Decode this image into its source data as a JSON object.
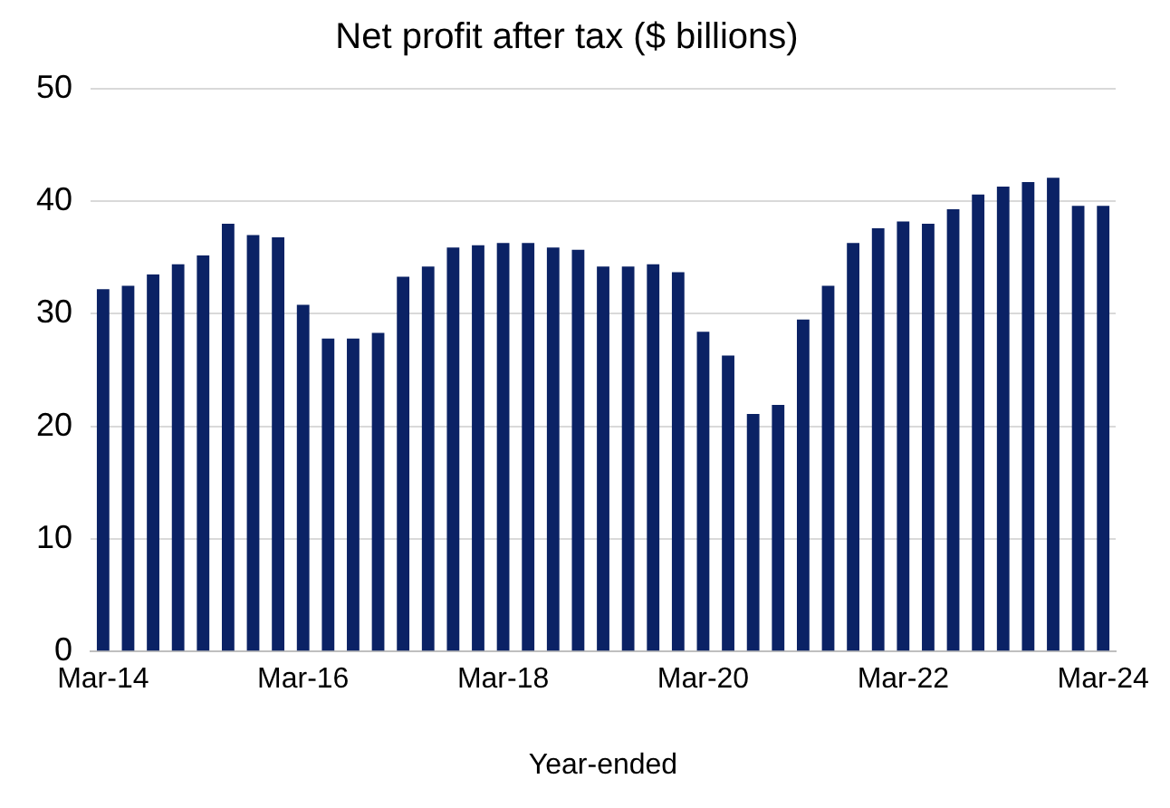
{
  "chart_data": {
    "type": "bar",
    "title": "Net profit after tax ($ billions)",
    "xlabel": "Year-ended",
    "categories": [
      "Mar-14",
      null,
      null,
      null,
      null,
      null,
      null,
      null,
      "Mar-16",
      null,
      null,
      null,
      null,
      null,
      null,
      null,
      "Mar-18",
      null,
      null,
      null,
      null,
      null,
      null,
      null,
      "Mar-20",
      null,
      null,
      null,
      null,
      null,
      null,
      null,
      "Mar-22",
      null,
      null,
      null,
      null,
      null,
      null,
      null,
      "Mar-24"
    ],
    "values": [
      32.2,
      32.5,
      33.5,
      34.4,
      35.2,
      38.0,
      37.0,
      36.8,
      30.8,
      27.8,
      27.8,
      28.3,
      33.3,
      34.2,
      35.9,
      36.1,
      36.3,
      36.3,
      35.9,
      35.7,
      34.2,
      34.2,
      34.4,
      33.7,
      28.4,
      26.3,
      21.1,
      21.9,
      29.5,
      32.5,
      36.3,
      37.6,
      38.2,
      38.0,
      39.3,
      40.6,
      41.3,
      41.7,
      42.1,
      39.6,
      39.6
    ],
    "color": "#0b2265",
    "ylim": [
      0,
      50
    ],
    "yticks": [
      0,
      10,
      20,
      30,
      40,
      50
    ],
    "grid": "y",
    "legend": false
  }
}
